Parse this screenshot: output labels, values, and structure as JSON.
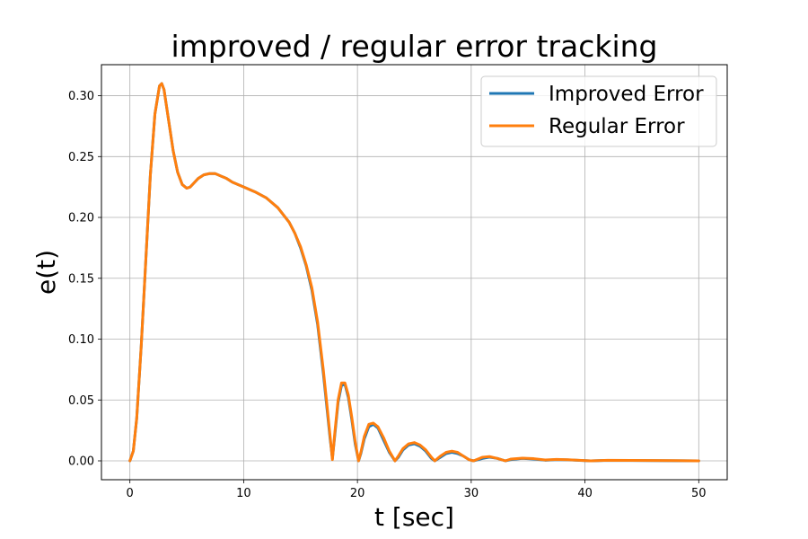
{
  "chart_data": {
    "type": "line",
    "title": "improved / regular error tracking",
    "xlabel": "t [sec]",
    "ylabel": "e(t)",
    "xlim": [
      -2.5,
      52.5
    ],
    "ylim": [
      -0.0155,
      0.3255
    ],
    "xticks": [
      0,
      10,
      20,
      30,
      40,
      50
    ],
    "yticks": [
      0.0,
      0.05,
      0.1,
      0.15,
      0.2,
      0.25,
      0.3
    ],
    "xtick_labels": [
      "0",
      "10",
      "20",
      "30",
      "40",
      "50"
    ],
    "ytick_labels": [
      "0.00",
      "0.05",
      "0.10",
      "0.15",
      "0.20",
      "0.25",
      "0.30"
    ],
    "grid": true,
    "legend_position": "upper right",
    "series": [
      {
        "name": "Improved Error",
        "color": "#1f77b4",
        "x": [
          0,
          0.3,
          0.6,
          1.0,
          1.4,
          1.8,
          2.2,
          2.6,
          2.8,
          3.0,
          3.4,
          3.8,
          4.2,
          4.6,
          5.0,
          5.3,
          5.6,
          6.0,
          6.5,
          7.0,
          7.5,
          8.0,
          8.5,
          9.0,
          10.0,
          11.0,
          12.0,
          13.0,
          14.0,
          14.5,
          15.0,
          15.5,
          16.0,
          16.5,
          17.0,
          17.3,
          17.6,
          17.8,
          18.0,
          18.3,
          18.6,
          18.9,
          19.2,
          19.5,
          19.8,
          20.1,
          20.3,
          20.6,
          21.0,
          21.4,
          21.8,
          22.3,
          22.8,
          23.3,
          23.6,
          24.0,
          24.5,
          25.0,
          25.5,
          26.0,
          26.5,
          26.8,
          27.3,
          27.8,
          28.3,
          28.8,
          29.3,
          29.8,
          30.2,
          31.0,
          31.6,
          32.3,
          33.0,
          33.5,
          34.5,
          35.5,
          36.5,
          37.5,
          38.5,
          39.5,
          40.5,
          42,
          44,
          46,
          48,
          50
        ],
        "y": [
          0.0,
          0.008,
          0.035,
          0.095,
          0.165,
          0.235,
          0.285,
          0.308,
          0.31,
          0.305,
          0.28,
          0.255,
          0.237,
          0.227,
          0.224,
          0.225,
          0.228,
          0.232,
          0.235,
          0.236,
          0.236,
          0.234,
          0.232,
          0.229,
          0.225,
          0.221,
          0.216,
          0.208,
          0.196,
          0.187,
          0.175,
          0.16,
          0.14,
          0.112,
          0.072,
          0.045,
          0.018,
          0.002,
          0.02,
          0.048,
          0.062,
          0.063,
          0.052,
          0.034,
          0.014,
          0.0,
          0.006,
          0.018,
          0.028,
          0.03,
          0.027,
          0.017,
          0.007,
          0.0,
          0.003,
          0.009,
          0.013,
          0.014,
          0.012,
          0.008,
          0.002,
          0.0,
          0.003,
          0.006,
          0.007,
          0.006,
          0.004,
          0.001,
          0.0,
          0.002,
          0.003,
          0.002,
          0.0,
          0.001,
          0.002,
          0.0015,
          0.0005,
          0.001,
          0.0008,
          0.0004,
          0.0,
          0.0004,
          0.0003,
          0.0002,
          0.0001,
          0.0
        ]
      },
      {
        "name": "Regular Error",
        "color": "#ff7f0e",
        "x": [
          0,
          0.3,
          0.6,
          1.0,
          1.4,
          1.8,
          2.2,
          2.6,
          2.8,
          3.0,
          3.4,
          3.8,
          4.2,
          4.6,
          5.0,
          5.3,
          5.6,
          6.0,
          6.5,
          7.0,
          7.5,
          8.0,
          8.5,
          9.0,
          10.0,
          11.0,
          12.0,
          13.0,
          14.0,
          14.5,
          15.0,
          15.5,
          16.0,
          16.5,
          17.0,
          17.3,
          17.6,
          17.8,
          18.0,
          18.3,
          18.6,
          18.9,
          19.2,
          19.5,
          19.8,
          20.1,
          20.3,
          20.6,
          21.0,
          21.4,
          21.8,
          22.3,
          22.8,
          23.3,
          23.6,
          24.0,
          24.5,
          25.0,
          25.5,
          26.0,
          26.5,
          26.8,
          27.3,
          27.8,
          28.3,
          28.8,
          29.3,
          29.8,
          30.2,
          31.0,
          31.6,
          32.3,
          33.0,
          33.5,
          34.5,
          35.5,
          36.5,
          37.5,
          38.5,
          39.5,
          40.5,
          42,
          44,
          46,
          48,
          50
        ],
        "y": [
          0.0,
          0.008,
          0.035,
          0.095,
          0.165,
          0.235,
          0.285,
          0.308,
          0.31,
          0.305,
          0.28,
          0.255,
          0.237,
          0.227,
          0.224,
          0.225,
          0.228,
          0.232,
          0.235,
          0.236,
          0.236,
          0.234,
          0.232,
          0.229,
          0.225,
          0.221,
          0.216,
          0.208,
          0.196,
          0.187,
          0.176,
          0.161,
          0.142,
          0.114,
          0.075,
          0.048,
          0.02,
          0.001,
          0.022,
          0.05,
          0.064,
          0.064,
          0.054,
          0.036,
          0.016,
          0.0,
          0.007,
          0.02,
          0.03,
          0.031,
          0.028,
          0.019,
          0.008,
          0.0,
          0.004,
          0.01,
          0.014,
          0.015,
          0.013,
          0.009,
          0.003,
          0.0,
          0.004,
          0.007,
          0.008,
          0.007,
          0.004,
          0.001,
          0.0,
          0.003,
          0.0035,
          0.002,
          0.0,
          0.0015,
          0.0022,
          0.0018,
          0.0007,
          0.0012,
          0.0009,
          0.0005,
          0.0,
          0.0005,
          0.0004,
          0.0003,
          0.0002,
          0.0
        ]
      }
    ]
  }
}
